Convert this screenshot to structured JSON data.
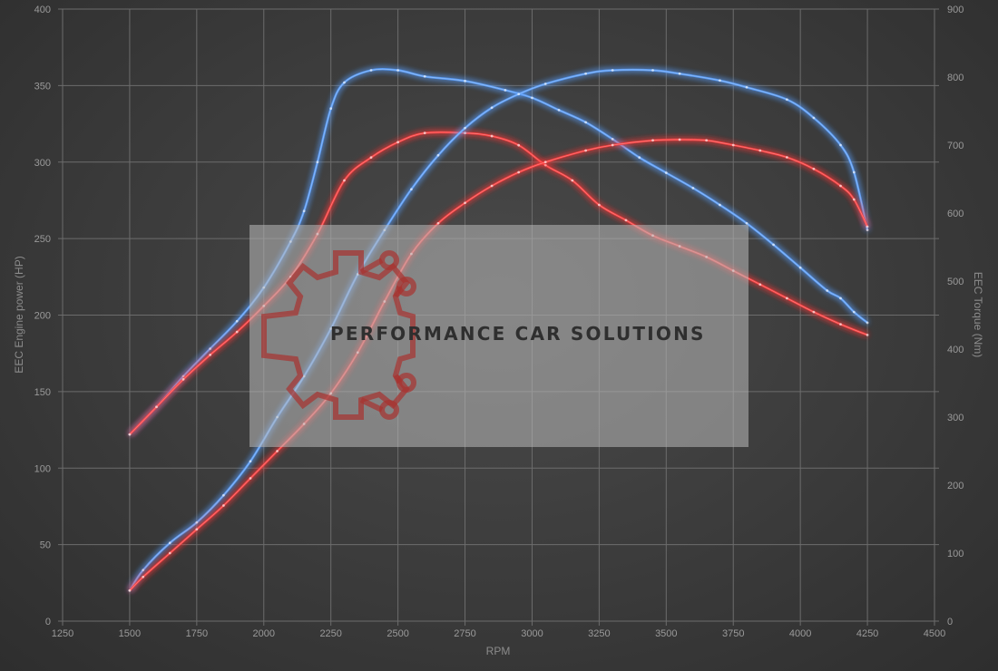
{
  "chart_data": {
    "type": "line",
    "xlabel": "RPM",
    "ylabel": "EEC Engine power (HP)",
    "y2label": "EEC Torque (Nm)",
    "xlim": [
      1250,
      4500
    ],
    "ylim": [
      0,
      400
    ],
    "y2lim": [
      0,
      900
    ],
    "x_ticks": [
      "1250",
      "1500",
      "1750",
      "2000",
      "2250",
      "2500",
      "2750",
      "3000",
      "3250",
      "3500",
      "3750",
      "4000",
      "4250",
      "4500"
    ],
    "y_ticks": [
      "0",
      "50",
      "100",
      "150",
      "200",
      "250",
      "300",
      "350",
      "400"
    ],
    "y2_ticks": [
      "0",
      "100",
      "200",
      "300",
      "400",
      "500",
      "600",
      "700",
      "800",
      "900"
    ],
    "grid": true,
    "colors": {
      "tuned": "#5aa0ff",
      "stock": "#ff3a3a"
    },
    "series": [
      {
        "style": "tuned",
        "axis": "power",
        "points": [
          [
            1500,
            122
          ],
          [
            1600,
            140
          ],
          [
            1700,
            160
          ],
          [
            1800,
            178
          ],
          [
            1900,
            196
          ],
          [
            2000,
            218
          ],
          [
            2100,
            248
          ],
          [
            2150,
            268
          ],
          [
            2200,
            300
          ],
          [
            2250,
            335
          ],
          [
            2300,
            352
          ],
          [
            2400,
            360
          ],
          [
            2500,
            360
          ],
          [
            2600,
            356
          ],
          [
            2750,
            353
          ],
          [
            2900,
            347
          ],
          [
            3000,
            342
          ],
          [
            3100,
            334
          ],
          [
            3200,
            326
          ],
          [
            3300,
            315
          ],
          [
            3400,
            303
          ],
          [
            3500,
            293
          ],
          [
            3600,
            283
          ],
          [
            3700,
            272
          ],
          [
            3800,
            260
          ],
          [
            3900,
            246
          ],
          [
            4000,
            231
          ],
          [
            4100,
            216
          ],
          [
            4150,
            211
          ],
          [
            4200,
            202
          ],
          [
            4250,
            195
          ]
        ]
      },
      {
        "style": "stock",
        "axis": "power",
        "points": [
          [
            1500,
            122
          ],
          [
            1600,
            140
          ],
          [
            1700,
            158
          ],
          [
            1800,
            174
          ],
          [
            1900,
            189
          ],
          [
            2000,
            206
          ],
          [
            2100,
            225
          ],
          [
            2200,
            253
          ],
          [
            2300,
            288
          ],
          [
            2400,
            303
          ],
          [
            2500,
            313
          ],
          [
            2600,
            319
          ],
          [
            2750,
            319
          ],
          [
            2850,
            317
          ],
          [
            2950,
            311
          ],
          [
            3050,
            298
          ],
          [
            3150,
            288
          ],
          [
            3250,
            272
          ],
          [
            3350,
            262
          ],
          [
            3450,
            252
          ],
          [
            3550,
            245
          ],
          [
            3650,
            238
          ],
          [
            3750,
            229
          ],
          [
            3850,
            220
          ],
          [
            3950,
            211
          ],
          [
            4050,
            202
          ],
          [
            4150,
            194
          ],
          [
            4250,
            187
          ]
        ]
      },
      {
        "style": "tuned",
        "axis": "torque",
        "points": [
          [
            1500,
            45
          ],
          [
            1550,
            75
          ],
          [
            1650,
            115
          ],
          [
            1750,
            145
          ],
          [
            1850,
            185
          ],
          [
            1950,
            235
          ],
          [
            2050,
            300
          ],
          [
            2150,
            360
          ],
          [
            2250,
            430
          ],
          [
            2350,
            510
          ],
          [
            2450,
            575
          ],
          [
            2550,
            635
          ],
          [
            2650,
            685
          ],
          [
            2750,
            725
          ],
          [
            2850,
            755
          ],
          [
            2950,
            775
          ],
          [
            3050,
            790
          ],
          [
            3200,
            805
          ],
          [
            3300,
            810
          ],
          [
            3450,
            810
          ],
          [
            3550,
            805
          ],
          [
            3700,
            795
          ],
          [
            3800,
            785
          ],
          [
            3950,
            767
          ],
          [
            4050,
            740
          ],
          [
            4150,
            700
          ],
          [
            4200,
            660
          ],
          [
            4250,
            575
          ]
        ]
      },
      {
        "style": "stock",
        "axis": "torque",
        "points": [
          [
            1500,
            45
          ],
          [
            1550,
            65
          ],
          [
            1650,
            100
          ],
          [
            1750,
            135
          ],
          [
            1850,
            170
          ],
          [
            1950,
            210
          ],
          [
            2050,
            250
          ],
          [
            2150,
            290
          ],
          [
            2250,
            335
          ],
          [
            2350,
            395
          ],
          [
            2450,
            470
          ],
          [
            2550,
            540
          ],
          [
            2650,
            585
          ],
          [
            2750,
            615
          ],
          [
            2850,
            640
          ],
          [
            2950,
            660
          ],
          [
            3050,
            675
          ],
          [
            3200,
            692
          ],
          [
            3300,
            700
          ],
          [
            3450,
            707
          ],
          [
            3550,
            708
          ],
          [
            3650,
            707
          ],
          [
            3750,
            700
          ],
          [
            3850,
            692
          ],
          [
            3950,
            682
          ],
          [
            4050,
            665
          ],
          [
            4150,
            640
          ],
          [
            4200,
            620
          ],
          [
            4250,
            580
          ]
        ]
      }
    ]
  },
  "watermark": {
    "text": "PERFORMANCE CAR SOLUTIONS",
    "logo": "gear-circuit-logo"
  }
}
